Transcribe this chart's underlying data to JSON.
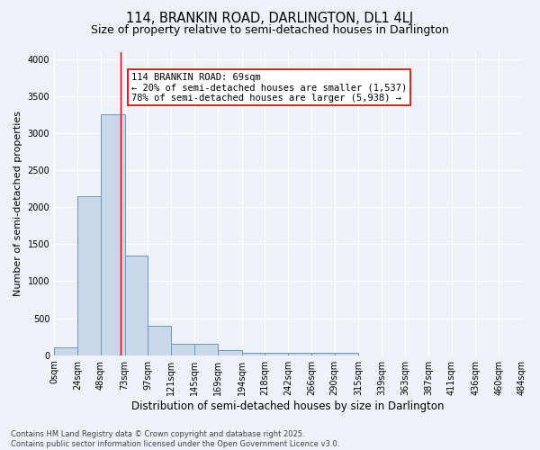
{
  "title1": "114, BRANKIN ROAD, DARLINGTON, DL1 4LJ",
  "title2": "Size of property relative to semi-detached houses in Darlington",
  "xlabel": "Distribution of semi-detached houses by size in Darlington",
  "ylabel": "Number of semi-detached properties",
  "bar_color": "#c8d8ea",
  "bar_edge_color": "#6699bb",
  "bin_edges": [
    0,
    24,
    48,
    73,
    97,
    121,
    145,
    169,
    194,
    218,
    242,
    266,
    290,
    315,
    339,
    363,
    387,
    411,
    436,
    460,
    484
  ],
  "bin_labels": [
    "0sqm",
    "24sqm",
    "48sqm",
    "73sqm",
    "97sqm",
    "121sqm",
    "145sqm",
    "169sqm",
    "194sqm",
    "218sqm",
    "242sqm",
    "266sqm",
    "290sqm",
    "315sqm",
    "339sqm",
    "363sqm",
    "387sqm",
    "411sqm",
    "436sqm",
    "460sqm",
    "484sqm"
  ],
  "counts": [
    100,
    2150,
    3250,
    1350,
    400,
    160,
    155,
    65,
    35,
    35,
    30,
    30,
    30,
    0,
    0,
    0,
    0,
    0,
    0,
    0
  ],
  "property_size": 69,
  "property_line_color": "#cc0000",
  "annotation_text": "114 BRANKIN ROAD: 69sqm\n← 20% of semi-detached houses are smaller (1,537)\n78% of semi-detached houses are larger (5,938) →",
  "annotation_box_color": "#ffffff",
  "annotation_border_color": "#cc0000",
  "ylim": [
    0,
    4100
  ],
  "yticks": [
    0,
    500,
    1000,
    1500,
    2000,
    2500,
    3000,
    3500,
    4000
  ],
  "background_color": "#eef2f8",
  "grid_color": "#ffffff",
  "footer_text": "Contains HM Land Registry data © Crown copyright and database right 2025.\nContains public sector information licensed under the Open Government Licence v3.0.",
  "title1_fontsize": 10.5,
  "title2_fontsize": 9,
  "xlabel_fontsize": 8.5,
  "ylabel_fontsize": 8,
  "tick_fontsize": 7,
  "annotation_fontsize": 7.5,
  "footer_fontsize": 6
}
